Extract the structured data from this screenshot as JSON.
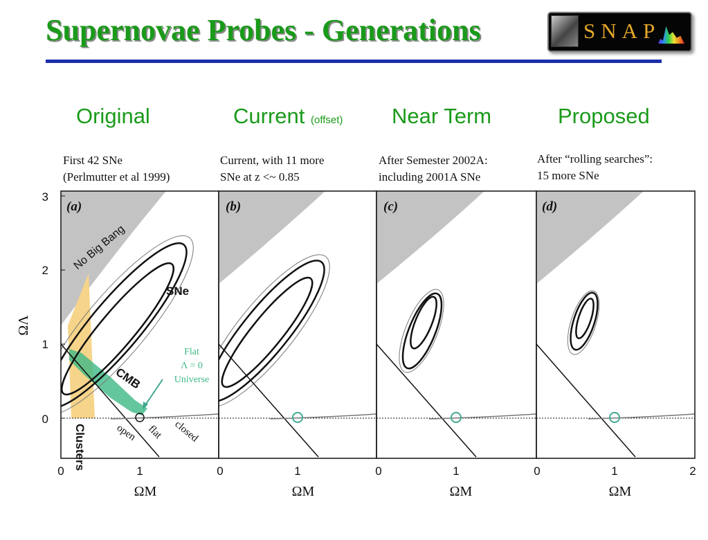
{
  "slide": {
    "title": "Supernovae Probes - Generations",
    "logo_text": "SNAP"
  },
  "columns": [
    {
      "heading": "Original",
      "heading_small": "",
      "caption_line1": "First 42 SNe",
      "caption_line2": "(Perlmutter et al 1999)",
      "panel_label": "(a)"
    },
    {
      "heading": "Current",
      "heading_small": "(offset)",
      "caption_line1": "Current, with 11 more",
      "caption_line2": "SNe at z <~ 0.85",
      "panel_label": "(b)"
    },
    {
      "heading": "Near Term",
      "heading_small": "",
      "caption_line1": "After Semester 2002A:",
      "caption_line2": "including 2001A SNe",
      "panel_label": "(c)"
    },
    {
      "heading": "Proposed",
      "heading_small": "",
      "caption_line1": "After “rolling searches”:",
      "caption_line2": "15 more SNe",
      "panel_label": "(d)"
    }
  ],
  "axes": {
    "y_label": "ΩΛ",
    "x_label": "ΩM",
    "y_ticks": [
      "3",
      "2",
      "1",
      "0"
    ],
    "x_ticks": [
      "0",
      "1",
      "0",
      "1",
      "0",
      "1",
      "0",
      "1",
      "2"
    ]
  },
  "annotations": {
    "no_big_bang": "No Big Bang",
    "sne": "SNe",
    "cmb": "CMB",
    "clusters": "Clusters",
    "flat_1": "Flat",
    "flat_2": "Λ = 0",
    "flat_3": "Universe",
    "open": "open",
    "flat": "flat",
    "closed": "closed"
  },
  "colors": {
    "title": "#1a9a1a",
    "rule": "#1c2fa8",
    "excluded_region": "#c3c3c3",
    "clusters_band": "#f6d48a",
    "cmb_band": "#3db884",
    "flat_point": "#40a890"
  }
}
